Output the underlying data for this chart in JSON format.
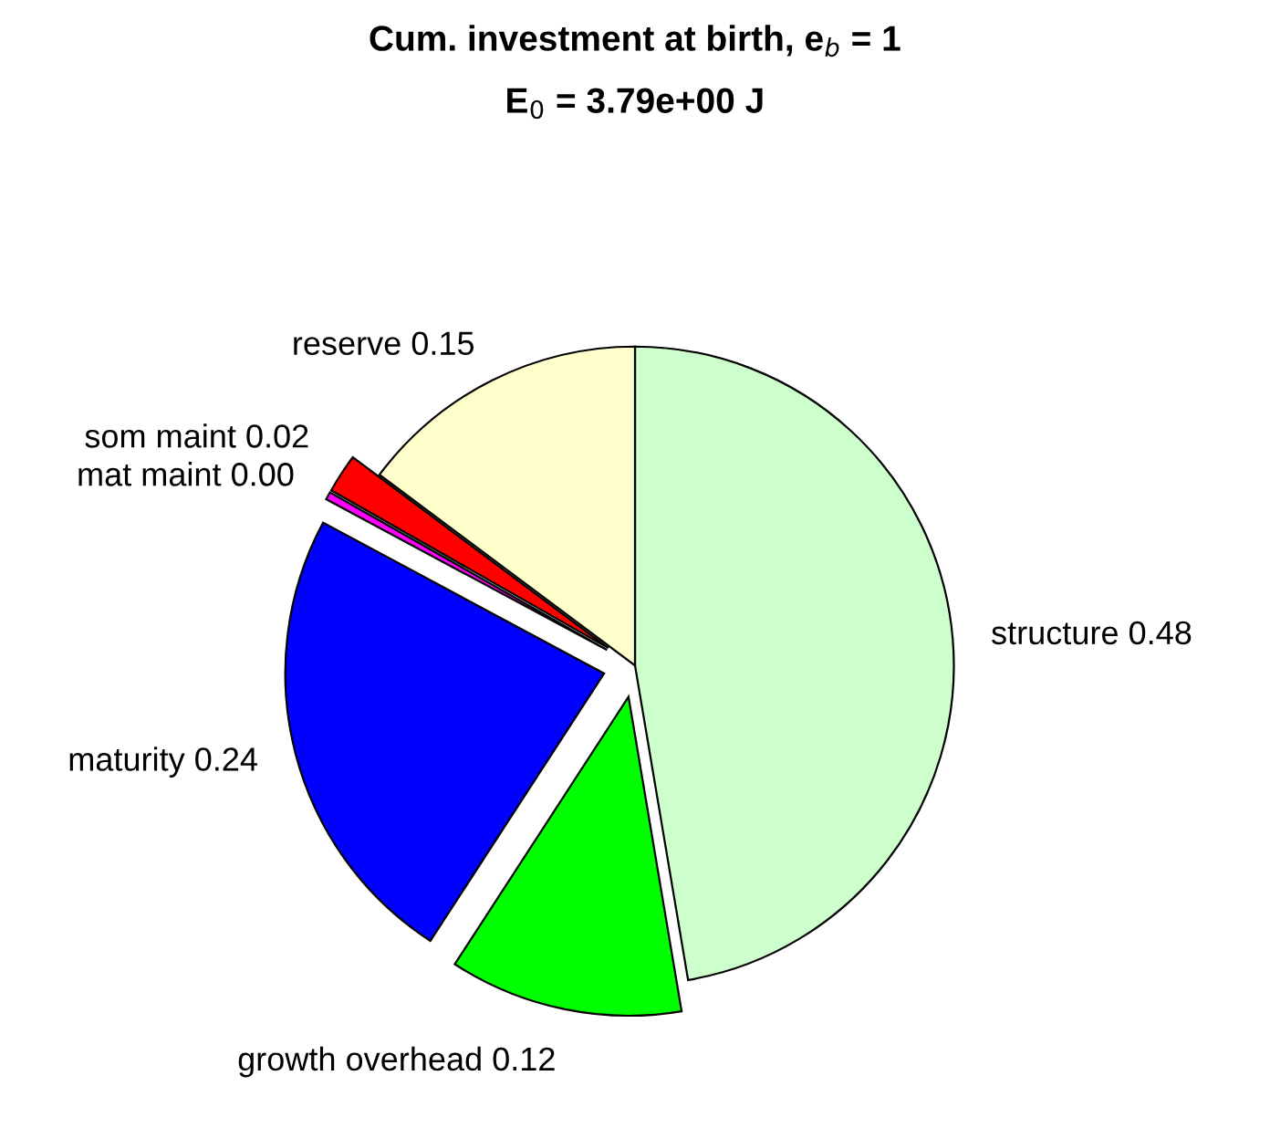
{
  "chart_data": {
    "type": "pie",
    "title": "Cum. investment at birth, e$_{b}$ = 1",
    "subtitle": "E$_{0}$ = 3.79e+00 J",
    "categories": [
      "structure",
      "growth overhead",
      "maturity",
      "mat maint",
      "som maint",
      "reserve"
    ],
    "values": [
      0.48,
      0.12,
      0.24,
      0.004,
      0.02,
      0.15
    ],
    "value_labels": [
      "0.48",
      "0.12",
      "0.24",
      "0.00",
      "0.02",
      "0.15"
    ],
    "colors": [
      "#ccffcc",
      "#00ff00",
      "#0000ff",
      "#ff00ff",
      "#ff0000",
      "#ffffcc"
    ],
    "legend": false
  }
}
